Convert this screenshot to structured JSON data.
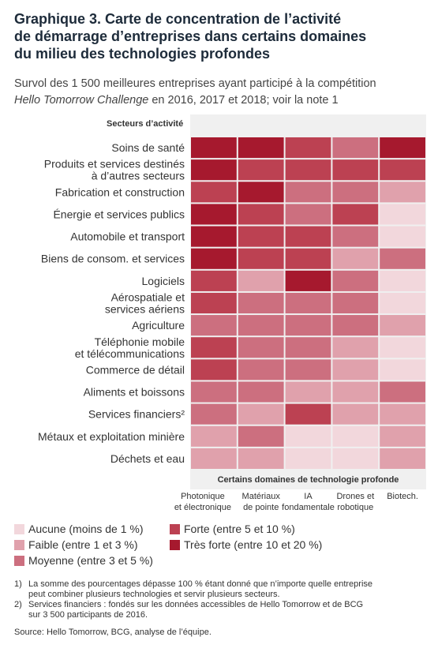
{
  "chart_data": {
    "type": "heatmap",
    "title": [
      "Graphique 3. Carte de concentration de l’activité",
      "de démarrage d’entreprises dans certains domaines",
      "du milieu des technologies profondes"
    ],
    "subtitle": {
      "line1": "Survol des 1 500 meilleures entreprises ayant participé à la compétition",
      "line2_italic": "Hello Tomorrow Challenge",
      "line2": " en 2016, 2017 et 2018; voir la note 1"
    },
    "y_label": "Secteurs d’activité",
    "x_label": "Certains domaines de technologie profonde",
    "categories": [
      [
        "Soins de santé"
      ],
      [
        "Produits et services destinés",
        "à d’autres secteurs"
      ],
      [
        "Fabrication et construction"
      ],
      [
        "Énergie et services publics"
      ],
      [
        "Automobile et transport"
      ],
      [
        "Biens de consom. et services"
      ],
      [
        "Logiciels"
      ],
      [
        "Aérospatiale et",
        "services aériens"
      ],
      [
        "Agriculture"
      ],
      [
        "Téléphonie mobile",
        "et télécommunications"
      ],
      [
        "Commerce de détail"
      ],
      [
        "Aliments et boissons"
      ],
      [
        "Services financiers²"
      ],
      [
        "Métaux et exploitation minière"
      ],
      [
        "Déchets et eau"
      ]
    ],
    "columns": [
      [
        "Photonique",
        "et électronique"
      ],
      [
        "Matériaux",
        "de pointe"
      ],
      [
        "IA",
        "fondamentale"
      ],
      [
        "Drones et",
        "robotique"
      ],
      [
        "Biotech."
      ]
    ],
    "levels": [
      {
        "label": "Aucune (moins de 1 %)",
        "color": "#f2d7dc"
      },
      {
        "label": "Faible (entre 1 et 3 %)",
        "color": "#e0a1ac"
      },
      {
        "label": "Moyenne (entre 3 et 5 %)",
        "color": "#cc6f7f"
      },
      {
        "label": "Forte (entre 5 et 10 %)",
        "color": "#bc4152"
      },
      {
        "label": "Très forte (entre 10 et 20 %)",
        "color": "#a6192e"
      }
    ],
    "values": [
      [
        4,
        4,
        3,
        2,
        4
      ],
      [
        4,
        3,
        3,
        3,
        3
      ],
      [
        3,
        4,
        2,
        2,
        1
      ],
      [
        4,
        3,
        2,
        3,
        0
      ],
      [
        4,
        3,
        3,
        2,
        0
      ],
      [
        4,
        3,
        3,
        1,
        2
      ],
      [
        3,
        1,
        4,
        2,
        0
      ],
      [
        3,
        2,
        2,
        2,
        0
      ],
      [
        2,
        2,
        2,
        2,
        1
      ],
      [
        3,
        2,
        2,
        1,
        0
      ],
      [
        3,
        2,
        2,
        1,
        0
      ],
      [
        2,
        2,
        1,
        1,
        2
      ],
      [
        2,
        1,
        3,
        1,
        1
      ],
      [
        1,
        2,
        0,
        0,
        1
      ],
      [
        1,
        1,
        0,
        0,
        1
      ]
    ],
    "notes": [
      {
        "marker": "1)",
        "lines": [
          "La somme des pourcentages dépasse 100 % étant donné que n’importe quelle entreprise",
          "peut combiner plusieurs technologies et servir plusieurs secteurs."
        ]
      },
      {
        "marker": "2)",
        "lines": [
          "Services financiers : fondés sur les données accessibles de Hello Tomorrow et de BCG",
          "sur 3 500 participants de 2016."
        ]
      }
    ],
    "source": "Source: Hello Tomorrow, BCG, analyse de l’équipe."
  }
}
